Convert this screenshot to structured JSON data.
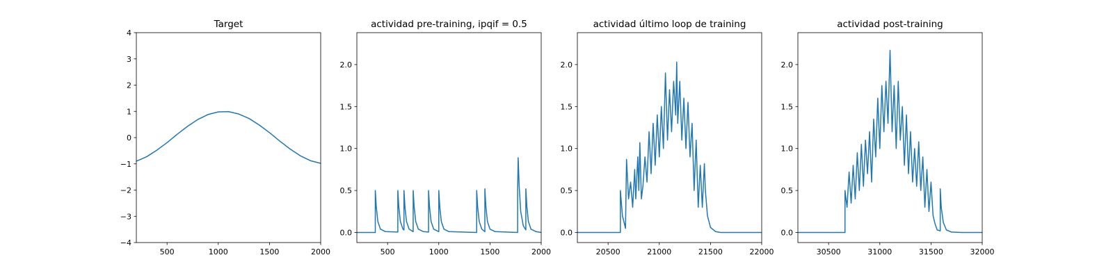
{
  "chart_data": [
    {
      "type": "line",
      "title": "Target",
      "color": "#1f77b4",
      "x": [
        200,
        300,
        400,
        500,
        600,
        700,
        800,
        900,
        1000,
        1100,
        1200,
        1300,
        1400,
        1500,
        1600,
        1700,
        1800,
        1900,
        2000
      ],
      "values": [
        -0.9,
        -0.73,
        -0.48,
        -0.19,
        0.13,
        0.43,
        0.69,
        0.88,
        0.98,
        0.99,
        0.9,
        0.73,
        0.48,
        0.19,
        -0.13,
        -0.43,
        -0.69,
        -0.88,
        -0.98
      ],
      "xlim": [
        200,
        2000
      ],
      "xticks": [
        500,
        1000,
        1500,
        2000
      ],
      "ylim": [
        -4,
        4
      ],
      "yticks": [
        {
          "value": -4,
          "label": "−4"
        },
        {
          "value": -3,
          "label": "−3"
        },
        {
          "value": -2,
          "label": "−2"
        },
        {
          "value": -1,
          "label": "−1"
        },
        0,
        1,
        2,
        3,
        4
      ]
    },
    {
      "type": "line",
      "title": "actividad pre-training, ipqif = 0.5",
      "color": "#1f77b4",
      "x": [
        200,
        380,
        380,
        390,
        405,
        430,
        480,
        600,
        600,
        610,
        625,
        650,
        660,
        660,
        670,
        685,
        710,
        750,
        750,
        760,
        775,
        800,
        850,
        900,
        900,
        910,
        925,
        950,
        1000,
        1000,
        1010,
        1025,
        1050,
        1100,
        1370,
        1370,
        1380,
        1395,
        1420,
        1450,
        1450,
        1460,
        1475,
        1500,
        1550,
        1770,
        1770,
        1775,
        1785,
        1800,
        1825,
        1850,
        1850,
        1860,
        1875,
        1900,
        1950,
        2000
      ],
      "values": [
        0,
        0,
        0.5,
        0.3,
        0.13,
        0.04,
        0.01,
        0.005,
        0.5,
        0.3,
        0.13,
        0.04,
        0.03,
        0.5,
        0.3,
        0.13,
        0.04,
        0.01,
        0.5,
        0.3,
        0.13,
        0.04,
        0.01,
        0.005,
        0.5,
        0.3,
        0.13,
        0.04,
        0.01,
        0.5,
        0.3,
        0.13,
        0.04,
        0.01,
        0,
        0.5,
        0.3,
        0.13,
        0.04,
        0.01,
        0.52,
        0.31,
        0.13,
        0.04,
        0.01,
        0,
        0.5,
        0.89,
        0.55,
        0.25,
        0.08,
        0.03,
        0.52,
        0.31,
        0.13,
        0.04,
        0.01,
        0
      ],
      "xlim": [
        200,
        2000
      ],
      "xticks": [
        500,
        1000,
        1500,
        2000
      ],
      "ylim": [
        -0.12,
        2.38
      ],
      "yticks": [
        {
          "value": 0,
          "label": "0.0"
        },
        {
          "value": 0.5,
          "label": "0.5"
        },
        {
          "value": 1,
          "label": "1.0"
        },
        {
          "value": 1.5,
          "label": "1.5"
        },
        {
          "value": 2,
          "label": "2.0"
        }
      ]
    },
    {
      "type": "line",
      "title": "actividad último loop de training",
      "color": "#1f77b4",
      "x": [
        20200,
        20620,
        20620,
        20640,
        20670,
        20680,
        20700,
        20720,
        20740,
        20760,
        20770,
        20790,
        20800,
        20810,
        20825,
        20840,
        20860,
        20880,
        20900,
        20920,
        20940,
        20960,
        20980,
        21000,
        21020,
        21040,
        21060,
        21080,
        21100,
        21120,
        21140,
        21160,
        21170,
        21180,
        21200,
        21220,
        21240,
        21260,
        21280,
        21300,
        21320,
        21340,
        21360,
        21380,
        21400,
        21420,
        21440,
        21450,
        21470,
        21500,
        21550,
        21600,
        22000
      ],
      "values": [
        0,
        0,
        0.5,
        0.2,
        0.05,
        0.87,
        0.4,
        0.6,
        0.3,
        0.75,
        0.4,
        0.9,
        0.5,
        1.07,
        0.4,
        0.55,
        0.9,
        0.6,
        1.2,
        0.7,
        1.3,
        0.8,
        1.4,
        0.9,
        1.5,
        1.0,
        1.9,
        1.1,
        1.7,
        1.2,
        1.8,
        1.4,
        2.03,
        1.3,
        1.8,
        1.1,
        1.6,
        1.0,
        1.55,
        0.9,
        1.3,
        0.5,
        1.1,
        0.3,
        0.8,
        0.3,
        0.82,
        0.5,
        0.2,
        0.06,
        0.01,
        0,
        0
      ],
      "xlim": [
        20200,
        22000
      ],
      "xticks": [
        20500,
        21000,
        21500,
        22000
      ],
      "ylim": [
        -0.12,
        2.38
      ],
      "yticks": [
        {
          "value": 0,
          "label": "0.0"
        },
        {
          "value": 0.5,
          "label": "0.5"
        },
        {
          "value": 1,
          "label": "1.0"
        },
        {
          "value": 1.5,
          "label": "1.5"
        },
        {
          "value": 2,
          "label": "2.0"
        }
      ]
    },
    {
      "type": "line",
      "title": "actividad post-training",
      "color": "#1f77b4",
      "x": [
        30200,
        30660,
        30660,
        30680,
        30700,
        30720,
        30740,
        30760,
        30780,
        30800,
        30820,
        30840,
        30860,
        30880,
        30900,
        30920,
        30940,
        30960,
        30980,
        31000,
        31020,
        31040,
        31060,
        31080,
        31100,
        31120,
        31140,
        31160,
        31180,
        31200,
        31220,
        31240,
        31260,
        31280,
        31300,
        31320,
        31340,
        31360,
        31380,
        31400,
        31420,
        31440,
        31460,
        31480,
        31500,
        31520,
        31540,
        31560,
        31590,
        31590,
        31600,
        31620,
        31650,
        31700,
        31800,
        32000
      ],
      "values": [
        0,
        0,
        0.5,
        0.3,
        0.72,
        0.35,
        0.8,
        0.4,
        0.95,
        0.5,
        1.05,
        0.55,
        1.1,
        0.7,
        1.2,
        0.6,
        1.35,
        0.9,
        1.6,
        1.0,
        1.75,
        1.2,
        1.8,
        1.3,
        2.17,
        1.2,
        1.75,
        1.0,
        1.8,
        1.1,
        1.5,
        0.8,
        1.4,
        0.7,
        1.2,
        0.6,
        1.0,
        0.55,
        1.08,
        0.5,
        0.9,
        0.3,
        0.75,
        0.25,
        0.6,
        0.2,
        0.1,
        0.03,
        0.02,
        0.52,
        0.3,
        0.12,
        0.03,
        0.005,
        0,
        0
      ],
      "xlim": [
        30200,
        32000
      ],
      "xticks": [
        30500,
        31000,
        31500,
        32000
      ],
      "ylim": [
        -0.12,
        2.38
      ],
      "yticks": [
        {
          "value": 0,
          "label": "0.0"
        },
        {
          "value": 0.5,
          "label": "0.5"
        },
        {
          "value": 1,
          "label": "1.0"
        },
        {
          "value": 1.5,
          "label": "1.5"
        },
        {
          "value": 2,
          "label": "2.0"
        }
      ]
    }
  ]
}
